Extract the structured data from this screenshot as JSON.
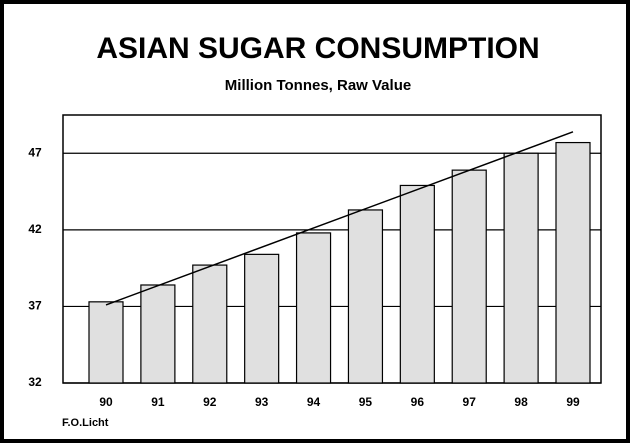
{
  "chart_data": {
    "type": "bar",
    "title": "ASIAN SUGAR CONSUMPTION",
    "subtitle": "Million Tonnes, Raw Value",
    "source": "F.O.Licht",
    "categories": [
      "90",
      "91",
      "92",
      "93",
      "94",
      "95",
      "96",
      "97",
      "98",
      "99"
    ],
    "values": [
      37.3,
      38.4,
      39.7,
      40.4,
      41.8,
      43.3,
      44.9,
      45.9,
      47.0,
      47.7
    ],
    "color": "#e0e0e0",
    "trend_line": {
      "values": [
        37.1,
        48.4
      ],
      "color": "#000000"
    },
    "ylim": [
      32,
      49.5
    ],
    "yticks": [
      32,
      37,
      42,
      47
    ],
    "grid": true
  }
}
